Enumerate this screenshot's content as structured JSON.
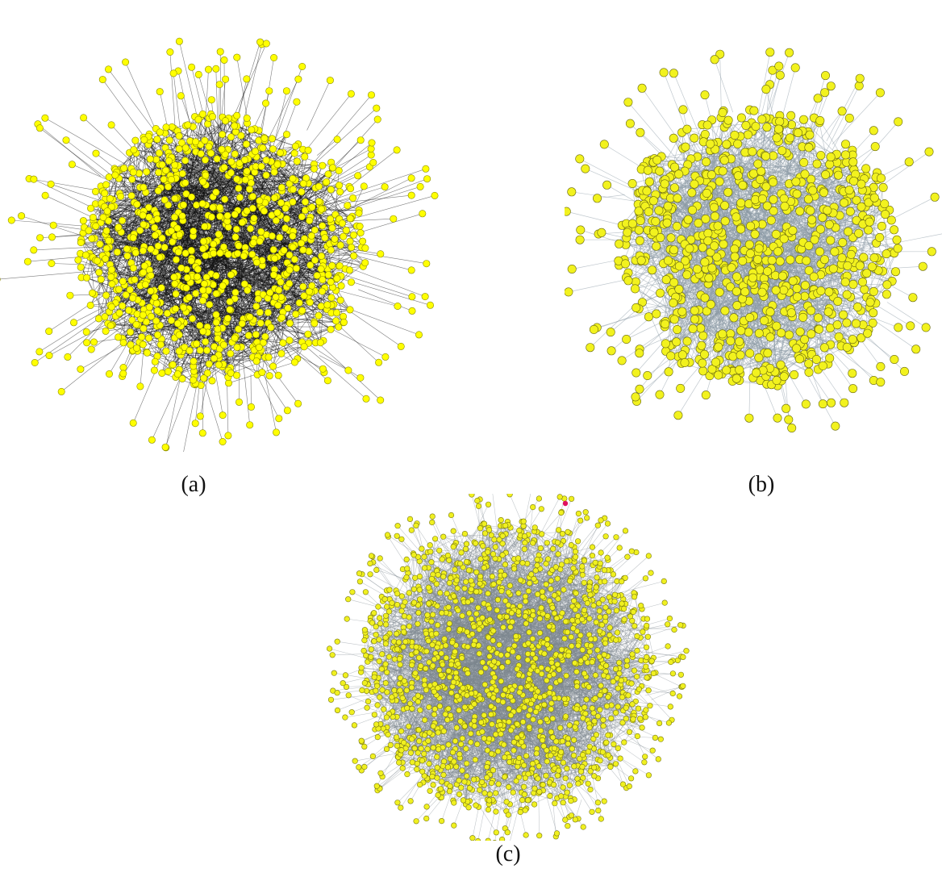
{
  "figure": {
    "panels": [
      {
        "id": "a",
        "caption": "(a)",
        "node_color": "#ffff00",
        "node_stroke": "#8a8a00",
        "edge_color": "#111111"
      },
      {
        "id": "b",
        "caption": "(b)",
        "node_color": "#f2f21e",
        "node_stroke": "#6d6d10",
        "edge_color": "#8c9aa6"
      },
      {
        "id": "c",
        "caption": "(c)",
        "node_color": "#f0f020",
        "node_stroke": "#7a7a10",
        "edge_color": "#7d8790",
        "highlight_node_color": "#e0115f"
      }
    ]
  }
}
